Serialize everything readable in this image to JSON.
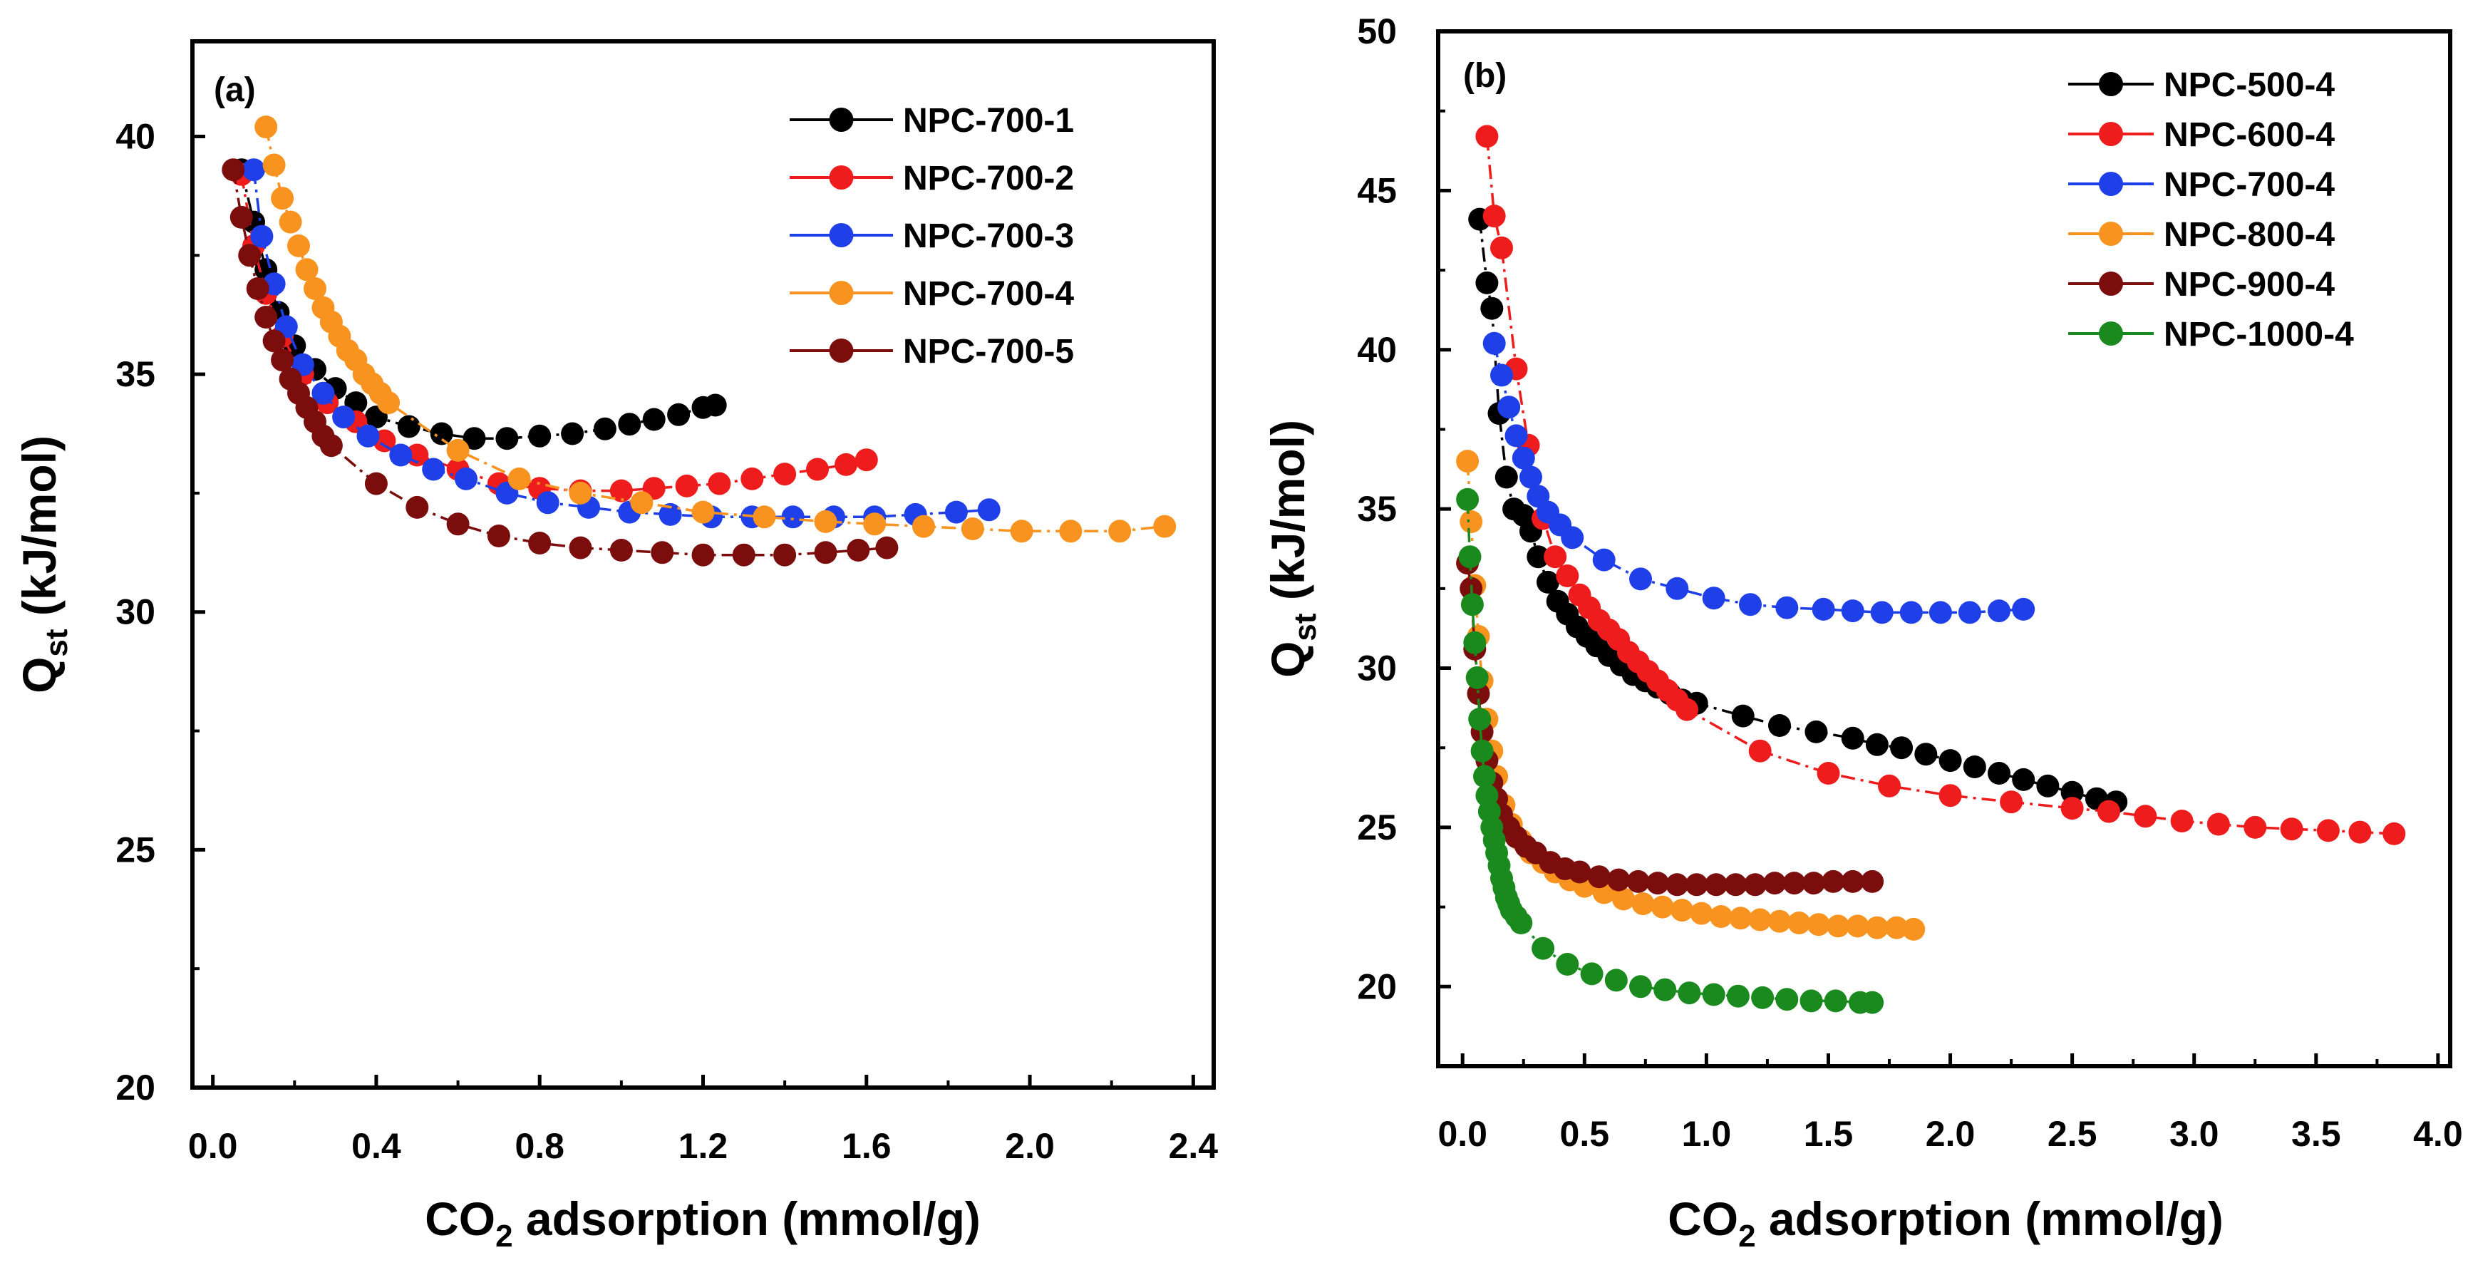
{
  "chart_data": [
    {
      "type": "scatter",
      "panel_label": "(a)",
      "xlabel": {
        "main": "CO",
        "sub": "2",
        "rest": " adsorption (mmol/g)"
      },
      "ylabel": {
        "main": "Q",
        "sub": "st",
        "rest": " (kJ/mol)"
      },
      "xlim": [
        -0.05,
        2.45
      ],
      "ylim": [
        20,
        42
      ],
      "xticks": [
        0.0,
        0.4,
        0.8,
        1.2,
        1.6,
        2.0,
        2.4
      ],
      "xtick_labels": [
        "0.0",
        "0.4",
        "0.8",
        "1.2",
        "1.6",
        "2.0",
        "2.4"
      ],
      "yticks": [
        20,
        25,
        30,
        35,
        40
      ],
      "ytick_labels": [
        "20",
        "25",
        "30",
        "35",
        "40"
      ],
      "legend_position": "top-right",
      "series": [
        {
          "name": "NPC-700-1",
          "color": "#000000",
          "x": [
            0.07,
            0.1,
            0.13,
            0.16,
            0.2,
            0.25,
            0.3,
            0.35,
            0.4,
            0.48,
            0.56,
            0.64,
            0.72,
            0.8,
            0.88,
            0.96,
            1.02,
            1.08,
            1.14,
            1.2,
            1.23
          ],
          "y": [
            39.3,
            38.2,
            37.2,
            36.3,
            35.6,
            35.1,
            34.7,
            34.4,
            34.1,
            33.9,
            33.75,
            33.65,
            33.65,
            33.7,
            33.75,
            33.85,
            33.95,
            34.05,
            34.15,
            34.3,
            34.35
          ]
        },
        {
          "name": "NPC-700-2",
          "color": "#ee1c1c",
          "x": [
            0.07,
            0.1,
            0.13,
            0.17,
            0.22,
            0.28,
            0.35,
            0.42,
            0.5,
            0.6,
            0.7,
            0.8,
            0.9,
            1.0,
            1.08,
            1.16,
            1.24,
            1.32,
            1.4,
            1.48,
            1.55,
            1.6
          ],
          "y": [
            39.2,
            37.7,
            36.7,
            35.8,
            35.0,
            34.4,
            34.0,
            33.6,
            33.3,
            33.0,
            32.7,
            32.6,
            32.55,
            32.55,
            32.6,
            32.65,
            32.7,
            32.8,
            32.9,
            33.0,
            33.1,
            33.2
          ]
        },
        {
          "name": "NPC-700-3",
          "color": "#1f3fe8",
          "x": [
            0.1,
            0.12,
            0.15,
            0.18,
            0.22,
            0.27,
            0.32,
            0.38,
            0.46,
            0.54,
            0.62,
            0.72,
            0.82,
            0.92,
            1.02,
            1.12,
            1.22,
            1.32,
            1.42,
            1.52,
            1.62,
            1.72,
            1.82,
            1.9
          ],
          "y": [
            39.3,
            37.9,
            36.9,
            36.0,
            35.2,
            34.6,
            34.1,
            33.7,
            33.3,
            33.0,
            32.8,
            32.5,
            32.3,
            32.2,
            32.1,
            32.05,
            32.0,
            32.0,
            32.0,
            32.0,
            32.0,
            32.05,
            32.1,
            32.15
          ]
        },
        {
          "name": "NPC-700-4",
          "color": "#f7931e",
          "x": [
            0.13,
            0.15,
            0.17,
            0.19,
            0.21,
            0.23,
            0.25,
            0.27,
            0.29,
            0.31,
            0.33,
            0.35,
            0.37,
            0.39,
            0.41,
            0.43,
            0.6,
            0.75,
            0.9,
            1.05,
            1.2,
            1.35,
            1.5,
            1.62,
            1.74,
            1.86,
            1.98,
            2.1,
            2.22,
            2.33
          ],
          "y": [
            40.2,
            39.4,
            38.7,
            38.2,
            37.7,
            37.2,
            36.8,
            36.4,
            36.1,
            35.8,
            35.5,
            35.3,
            35.0,
            34.8,
            34.6,
            34.4,
            33.4,
            32.8,
            32.5,
            32.3,
            32.1,
            32.0,
            31.9,
            31.85,
            31.8,
            31.75,
            31.7,
            31.7,
            31.7,
            31.8
          ]
        },
        {
          "name": "NPC-700-5",
          "color": "#7b0d0d",
          "x": [
            0.05,
            0.07,
            0.09,
            0.11,
            0.13,
            0.15,
            0.17,
            0.19,
            0.21,
            0.23,
            0.25,
            0.27,
            0.29,
            0.4,
            0.5,
            0.6,
            0.7,
            0.8,
            0.9,
            1.0,
            1.1,
            1.2,
            1.3,
            1.4,
            1.5,
            1.58,
            1.65
          ],
          "y": [
            39.3,
            38.3,
            37.5,
            36.8,
            36.2,
            35.7,
            35.3,
            34.9,
            34.6,
            34.3,
            34.0,
            33.7,
            33.5,
            32.7,
            32.2,
            31.85,
            31.6,
            31.45,
            31.35,
            31.3,
            31.25,
            31.2,
            31.2,
            31.2,
            31.25,
            31.3,
            31.35
          ]
        }
      ]
    },
    {
      "type": "scatter",
      "panel_label": "(b)",
      "xlabel": {
        "main": "CO",
        "sub": "2",
        "rest": " adsorption (mmol/g)"
      },
      "ylabel": {
        "main": "Q",
        "sub": "st",
        "rest": " (kJ/mol)"
      },
      "xlim": [
        -0.1,
        4.05
      ],
      "ylim": [
        17.5,
        50
      ],
      "xticks": [
        0.0,
        0.5,
        1.0,
        1.5,
        2.0,
        2.5,
        3.0,
        3.5,
        4.0
      ],
      "xtick_labels": [
        "0.0",
        "0.5",
        "1.0",
        "1.5",
        "2.0",
        "2.5",
        "3.0",
        "3.5",
        "4.0"
      ],
      "yticks": [
        20,
        25,
        30,
        35,
        40,
        45,
        50
      ],
      "ytick_labels": [
        "20",
        "25",
        "30",
        "35",
        "40",
        "45",
        "50"
      ],
      "legend_position": "top-right",
      "series": [
        {
          "name": "NPC-500-4",
          "color": "#000000",
          "x": [
            0.07,
            0.1,
            0.12,
            0.15,
            0.18,
            0.21,
            0.25,
            0.28,
            0.31,
            0.35,
            0.39,
            0.43,
            0.47,
            0.51,
            0.55,
            0.6,
            0.65,
            0.7,
            0.75,
            0.8,
            0.85,
            0.9,
            0.96,
            1.15,
            1.3,
            1.45,
            1.6,
            1.7,
            1.8,
            1.9,
            2.0,
            2.1,
            2.2,
            2.3,
            2.4,
            2.5,
            2.6,
            2.68
          ],
          "y": [
            44.1,
            42.1,
            41.3,
            38.0,
            36.0,
            35.0,
            34.8,
            34.3,
            33.5,
            32.7,
            32.1,
            31.7,
            31.3,
            31.0,
            30.7,
            30.4,
            30.1,
            29.8,
            29.6,
            29.4,
            29.2,
            29.0,
            28.9,
            28.5,
            28.2,
            28.0,
            27.8,
            27.6,
            27.5,
            27.3,
            27.1,
            26.9,
            26.7,
            26.5,
            26.3,
            26.1,
            25.9,
            25.8
          ]
        },
        {
          "name": "NPC-600-4",
          "color": "#ee1c1c",
          "x": [
            0.1,
            0.13,
            0.16,
            0.22,
            0.27,
            0.33,
            0.38,
            0.43,
            0.48,
            0.52,
            0.56,
            0.6,
            0.64,
            0.68,
            0.72,
            0.76,
            0.8,
            0.84,
            0.88,
            0.92,
            1.22,
            1.5,
            1.75,
            2.0,
            2.25,
            2.5,
            2.65,
            2.8,
            2.95,
            3.1,
            3.25,
            3.4,
            3.55,
            3.68,
            3.82
          ],
          "y": [
            46.7,
            44.2,
            43.2,
            39.4,
            37.0,
            34.7,
            33.5,
            32.9,
            32.3,
            31.9,
            31.5,
            31.2,
            30.9,
            30.5,
            30.2,
            29.9,
            29.6,
            29.3,
            29.0,
            28.7,
            27.4,
            26.7,
            26.3,
            26.0,
            25.8,
            25.6,
            25.5,
            25.35,
            25.2,
            25.1,
            25.0,
            24.95,
            24.9,
            24.85,
            24.8
          ]
        },
        {
          "name": "NPC-700-4",
          "color": "#1f3fe8",
          "x": [
            0.13,
            0.16,
            0.19,
            0.22,
            0.25,
            0.28,
            0.31,
            0.35,
            0.4,
            0.45,
            0.58,
            0.73,
            0.88,
            1.03,
            1.18,
            1.33,
            1.48,
            1.6,
            1.72,
            1.84,
            1.96,
            2.08,
            2.2,
            2.3
          ],
          "y": [
            40.2,
            39.2,
            38.2,
            37.3,
            36.6,
            36.0,
            35.4,
            34.9,
            34.5,
            34.1,
            33.4,
            32.8,
            32.5,
            32.2,
            32.0,
            31.9,
            31.85,
            31.8,
            31.75,
            31.75,
            31.75,
            31.75,
            31.8,
            31.85
          ]
        },
        {
          "name": "NPC-800-4",
          "color": "#f7931e",
          "x": [
            0.02,
            0.035,
            0.05,
            0.065,
            0.08,
            0.1,
            0.12,
            0.14,
            0.17,
            0.2,
            0.24,
            0.28,
            0.33,
            0.38,
            0.44,
            0.5,
            0.58,
            0.66,
            0.74,
            0.82,
            0.9,
            0.98,
            1.06,
            1.14,
            1.22,
            1.3,
            1.38,
            1.46,
            1.54,
            1.62,
            1.7,
            1.78,
            1.85
          ],
          "y": [
            36.5,
            34.6,
            32.6,
            31.0,
            29.6,
            28.4,
            27.4,
            26.6,
            25.7,
            25.1,
            24.6,
            24.2,
            23.9,
            23.6,
            23.35,
            23.15,
            22.95,
            22.75,
            22.6,
            22.5,
            22.4,
            22.3,
            22.2,
            22.15,
            22.1,
            22.05,
            22.0,
            21.95,
            21.9,
            21.9,
            21.85,
            21.85,
            21.8
          ]
        },
        {
          "name": "NPC-900-4",
          "color": "#7b0d0d",
          "x": [
            0.02,
            0.035,
            0.05,
            0.065,
            0.08,
            0.1,
            0.12,
            0.14,
            0.16,
            0.19,
            0.22,
            0.26,
            0.3,
            0.36,
            0.42,
            0.48,
            0.56,
            0.64,
            0.72,
            0.8,
            0.88,
            0.96,
            1.04,
            1.12,
            1.2,
            1.28,
            1.36,
            1.44,
            1.52,
            1.6,
            1.68
          ],
          "y": [
            33.3,
            32.5,
            30.6,
            29.2,
            28.0,
            27.1,
            26.4,
            25.9,
            25.4,
            25.0,
            24.7,
            24.4,
            24.2,
            23.9,
            23.7,
            23.6,
            23.45,
            23.35,
            23.3,
            23.25,
            23.2,
            23.2,
            23.2,
            23.2,
            23.2,
            23.25,
            23.25,
            23.25,
            23.3,
            23.3,
            23.3
          ]
        },
        {
          "name": "NPC-1000-4",
          "color": "#1b8a1e",
          "x": [
            0.02,
            0.03,
            0.04,
            0.05,
            0.06,
            0.07,
            0.08,
            0.09,
            0.1,
            0.11,
            0.12,
            0.13,
            0.14,
            0.15,
            0.16,
            0.17,
            0.18,
            0.19,
            0.2,
            0.22,
            0.24,
            0.33,
            0.43,
            0.53,
            0.63,
            0.73,
            0.83,
            0.93,
            1.03,
            1.13,
            1.23,
            1.33,
            1.43,
            1.53,
            1.63,
            1.68
          ],
          "y": [
            35.3,
            33.5,
            32.0,
            30.8,
            29.7,
            28.4,
            27.4,
            26.6,
            26.0,
            25.5,
            25.0,
            24.6,
            24.2,
            23.8,
            23.4,
            23.1,
            22.8,
            22.6,
            22.4,
            22.2,
            22.0,
            21.2,
            20.7,
            20.4,
            20.2,
            20.0,
            19.9,
            19.8,
            19.75,
            19.7,
            19.65,
            19.6,
            19.55,
            19.55,
            19.5,
            19.5
          ]
        }
      ]
    }
  ]
}
